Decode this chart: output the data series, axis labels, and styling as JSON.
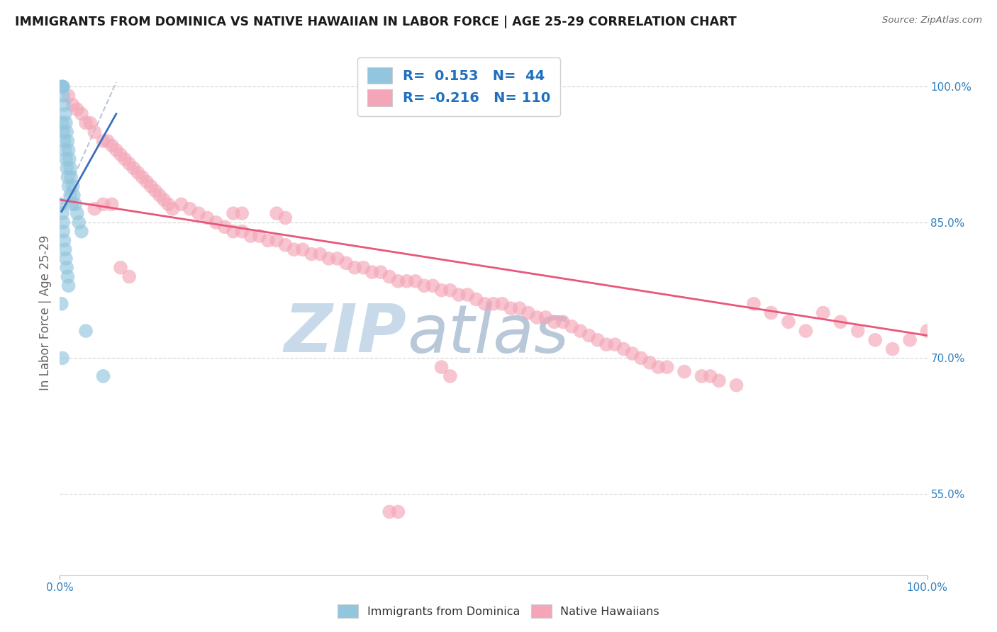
{
  "title": "IMMIGRANTS FROM DOMINICA VS NATIVE HAWAIIAN IN LABOR FORCE | AGE 25-29 CORRELATION CHART",
  "source": "Source: ZipAtlas.com",
  "ylabel": "In Labor Force | Age 25-29",
  "xlim": [
    0.0,
    1.0
  ],
  "ylim": [
    0.46,
    1.04
  ],
  "right_yticks": [
    1.0,
    0.85,
    0.7,
    0.55
  ],
  "right_yticklabels": [
    "100.0%",
    "85.0%",
    "70.0%",
    "55.0%"
  ],
  "legend_r_blue": "0.153",
  "legend_n_blue": "44",
  "legend_r_pink": "-0.216",
  "legend_n_pink": "110",
  "blue_color": "#92c5de",
  "pink_color": "#f4a6b8",
  "blue_line_color": "#3a6fbd",
  "pink_line_color": "#e8567a",
  "dashed_line_color": "#b8c8d8",
  "watermark_zip": "ZIP",
  "watermark_atlas": "atlas",
  "watermark_color_zip": "#c8daea",
  "watermark_color_atlas": "#b8c8d8",
  "grid_color": "#d8d8d8",
  "dominica_x": [
    0.002,
    0.003,
    0.003,
    0.004,
    0.004,
    0.005,
    0.006,
    0.007,
    0.008,
    0.009,
    0.01,
    0.011,
    0.012,
    0.013,
    0.015,
    0.016,
    0.018,
    0.02,
    0.022,
    0.025,
    0.003,
    0.004,
    0.005,
    0.006,
    0.007,
    0.008,
    0.009,
    0.01,
    0.012,
    0.014,
    0.002,
    0.003,
    0.004,
    0.004,
    0.005,
    0.006,
    0.007,
    0.008,
    0.009,
    0.01,
    0.002,
    0.003,
    0.03,
    0.05
  ],
  "dominica_y": [
    1.0,
    1.0,
    1.0,
    1.0,
    0.99,
    0.98,
    0.97,
    0.96,
    0.95,
    0.94,
    0.93,
    0.92,
    0.91,
    0.9,
    0.89,
    0.88,
    0.87,
    0.86,
    0.85,
    0.84,
    0.96,
    0.95,
    0.94,
    0.93,
    0.92,
    0.91,
    0.9,
    0.89,
    0.88,
    0.87,
    0.87,
    0.86,
    0.85,
    0.84,
    0.83,
    0.82,
    0.81,
    0.8,
    0.79,
    0.78,
    0.76,
    0.7,
    0.73,
    0.68
  ],
  "native_hawaiian_x": [
    0.01,
    0.015,
    0.02,
    0.025,
    0.03,
    0.035,
    0.04,
    0.05,
    0.055,
    0.06,
    0.065,
    0.07,
    0.075,
    0.08,
    0.085,
    0.09,
    0.095,
    0.1,
    0.105,
    0.11,
    0.115,
    0.12,
    0.125,
    0.13,
    0.14,
    0.15,
    0.16,
    0.17,
    0.18,
    0.19,
    0.2,
    0.21,
    0.22,
    0.23,
    0.24,
    0.25,
    0.26,
    0.27,
    0.28,
    0.29,
    0.3,
    0.31,
    0.32,
    0.33,
    0.34,
    0.35,
    0.36,
    0.37,
    0.38,
    0.39,
    0.4,
    0.41,
    0.42,
    0.43,
    0.44,
    0.45,
    0.46,
    0.47,
    0.48,
    0.49,
    0.5,
    0.51,
    0.52,
    0.53,
    0.54,
    0.55,
    0.56,
    0.57,
    0.58,
    0.59,
    0.6,
    0.61,
    0.62,
    0.63,
    0.64,
    0.65,
    0.66,
    0.67,
    0.68,
    0.69,
    0.7,
    0.72,
    0.74,
    0.75,
    0.76,
    0.78,
    0.8,
    0.82,
    0.84,
    0.86,
    0.88,
    0.9,
    0.92,
    0.94,
    0.96,
    0.98,
    1.0,
    0.04,
    0.05,
    0.06,
    0.07,
    0.08,
    0.2,
    0.21,
    0.25,
    0.26,
    0.38,
    0.39,
    0.44,
    0.45
  ],
  "native_hawaiian_y": [
    0.99,
    0.98,
    0.975,
    0.97,
    0.96,
    0.96,
    0.95,
    0.94,
    0.94,
    0.935,
    0.93,
    0.925,
    0.92,
    0.915,
    0.91,
    0.905,
    0.9,
    0.895,
    0.89,
    0.885,
    0.88,
    0.875,
    0.87,
    0.865,
    0.87,
    0.865,
    0.86,
    0.855,
    0.85,
    0.845,
    0.84,
    0.84,
    0.835,
    0.835,
    0.83,
    0.83,
    0.825,
    0.82,
    0.82,
    0.815,
    0.815,
    0.81,
    0.81,
    0.805,
    0.8,
    0.8,
    0.795,
    0.795,
    0.79,
    0.785,
    0.785,
    0.785,
    0.78,
    0.78,
    0.775,
    0.775,
    0.77,
    0.77,
    0.765,
    0.76,
    0.76,
    0.76,
    0.755,
    0.755,
    0.75,
    0.745,
    0.745,
    0.74,
    0.74,
    0.735,
    0.73,
    0.725,
    0.72,
    0.715,
    0.715,
    0.71,
    0.705,
    0.7,
    0.695,
    0.69,
    0.69,
    0.685,
    0.68,
    0.68,
    0.675,
    0.67,
    0.76,
    0.75,
    0.74,
    0.73,
    0.75,
    0.74,
    0.73,
    0.72,
    0.71,
    0.72,
    0.73,
    0.865,
    0.87,
    0.87,
    0.8,
    0.79,
    0.86,
    0.86,
    0.86,
    0.855,
    0.53,
    0.53,
    0.69,
    0.68
  ],
  "pink_trend_x0": 0.0,
  "pink_trend_y0": 0.875,
  "pink_trend_x1": 1.0,
  "pink_trend_y1": 0.725,
  "blue_trend_x0": 0.002,
  "blue_trend_y0": 0.862,
  "blue_trend_x1": 0.065,
  "blue_trend_y1": 0.97,
  "dash_trend_x0": 0.002,
  "dash_trend_y0": 0.87,
  "dash_trend_x1": 0.065,
  "dash_trend_y1": 1.005
}
